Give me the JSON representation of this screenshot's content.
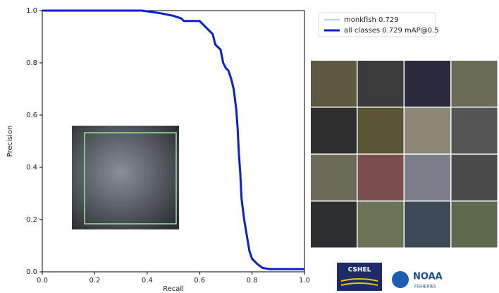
{
  "chart_data": {
    "type": "line",
    "xlabel": "Recall",
    "ylabel": "Precision",
    "xlim": [
      0,
      1
    ],
    "ylim": [
      0,
      1
    ],
    "xticks": [
      {
        "value": 0,
        "label": "0.0"
      },
      0.2,
      0.4,
      0.6,
      0.8,
      {
        "value": 1,
        "label": "1.0"
      }
    ],
    "yticks": [
      {
        "value": 0,
        "label": "0.0"
      },
      0.2,
      0.4,
      0.6,
      0.8,
      {
        "value": 1,
        "label": "1.0"
      }
    ],
    "x": [
      0,
      0.38,
      0.45,
      0.5,
      0.53,
      0.54,
      0.6,
      0.61,
      0.63,
      0.65,
      0.66,
      0.68,
      0.69,
      0.7,
      0.71,
      0.72,
      0.73,
      0.74,
      0.745,
      0.75,
      0.755,
      0.76,
      0.77,
      0.78,
      0.79,
      0.8,
      0.82,
      0.84,
      0.87,
      1.0
    ],
    "series": [
      {
        "name": "monkfish 0.729",
        "color": "#6fa8dc",
        "width": 1,
        "values": [
          1,
          1,
          0.99,
          0.98,
          0.97,
          0.96,
          0.96,
          0.95,
          0.93,
          0.91,
          0.87,
          0.85,
          0.8,
          0.78,
          0.77,
          0.74,
          0.7,
          0.62,
          0.55,
          0.45,
          0.38,
          0.28,
          0.2,
          0.14,
          0.08,
          0.05,
          0.03,
          0.015,
          0.01,
          0.01
        ]
      },
      {
        "name": "all classes 0.729 mAP@0.5",
        "color": "#0a1fd6",
        "width": 3,
        "values": [
          1,
          1,
          0.99,
          0.98,
          0.97,
          0.96,
          0.96,
          0.95,
          0.93,
          0.91,
          0.87,
          0.85,
          0.8,
          0.78,
          0.77,
          0.74,
          0.7,
          0.62,
          0.55,
          0.45,
          0.38,
          0.28,
          0.2,
          0.14,
          0.08,
          0.05,
          0.03,
          0.015,
          0.01,
          0.01
        ]
      }
    ],
    "annotations": [
      "CSHEL",
      "NOAA",
      "FISHERIES"
    ]
  }
}
